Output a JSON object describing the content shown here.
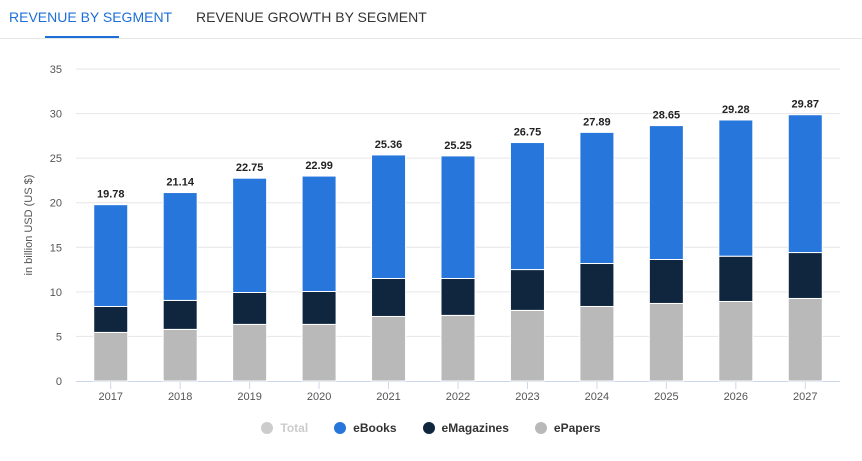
{
  "tabs": [
    {
      "label": "REVENUE BY SEGMENT",
      "active": true
    },
    {
      "label": "REVENUE GROWTH BY SEGMENT",
      "active": false
    }
  ],
  "chart_data": {
    "type": "bar",
    "stacked": true,
    "ylabel": "in billion USD (US $)",
    "ylim": [
      0,
      35
    ],
    "yticks": [
      0,
      5,
      10,
      15,
      20,
      25,
      30,
      35
    ],
    "grid": true,
    "legend_position": "bottom",
    "categories": [
      "2017",
      "2018",
      "2019",
      "2020",
      "2021",
      "2022",
      "2023",
      "2024",
      "2025",
      "2026",
      "2027"
    ],
    "totals": [
      19.78,
      21.14,
      22.75,
      22.99,
      25.36,
      25.25,
      26.75,
      27.89,
      28.65,
      29.28,
      29.87
    ],
    "total_labels": [
      "19.78",
      "21.14",
      "22.75",
      "22.99",
      "25.36",
      "25.25",
      "26.75",
      "27.89",
      "28.65",
      "29.28",
      "29.87"
    ],
    "series": [
      {
        "name": "ePapers",
        "color": "#b9b9b9",
        "values": [
          5.45,
          5.79,
          6.35,
          6.35,
          7.24,
          7.36,
          7.92,
          8.36,
          8.7,
          8.92,
          9.26
        ]
      },
      {
        "name": "eMagazines",
        "color": "#10263f",
        "values": [
          2.91,
          3.25,
          3.58,
          3.69,
          4.26,
          4.14,
          4.58,
          4.82,
          4.93,
          5.08,
          5.15
        ]
      },
      {
        "name": "eBooks",
        "color": "#2776dc",
        "values": [
          11.42,
          12.1,
          12.82,
          12.95,
          13.86,
          13.75,
          14.25,
          14.71,
          15.02,
          15.28,
          15.46
        ]
      }
    ],
    "legend": [
      {
        "name": "Total",
        "color": "#cccccc",
        "hidden": true
      },
      {
        "name": "eBooks",
        "color": "#2776dc"
      },
      {
        "name": "eMagazines",
        "color": "#10263f"
      },
      {
        "name": "ePapers",
        "color": "#b9b9b9"
      }
    ]
  }
}
